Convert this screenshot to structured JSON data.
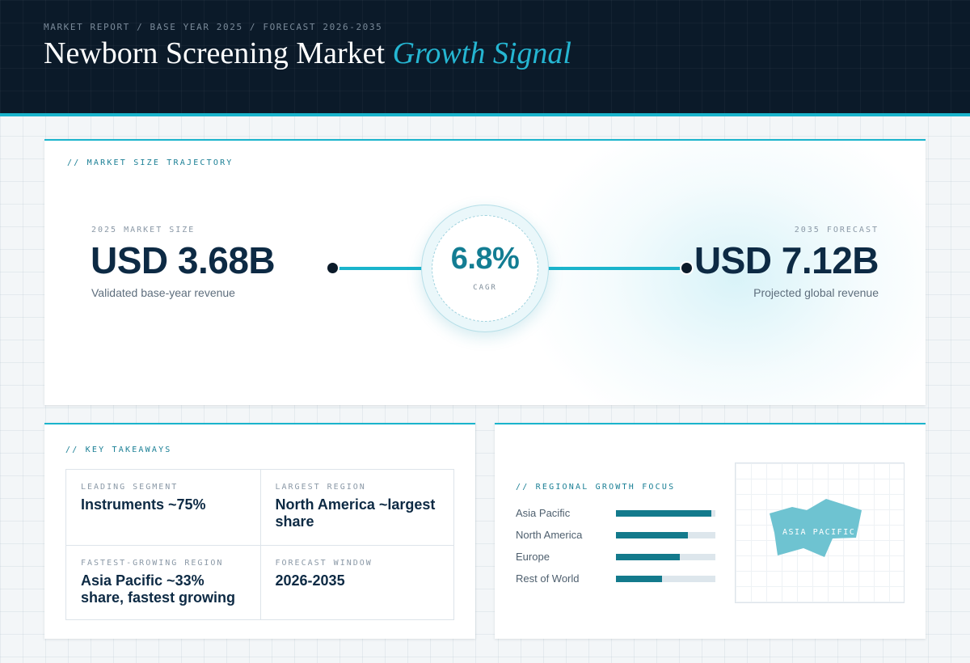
{
  "header": {
    "eyebrow": "MARKET REPORT / BASE YEAR 2025 / FORECAST 2026-2035",
    "title_main": "Newborn Screening Market",
    "title_accent": "Growth Signal"
  },
  "trajectory": {
    "label": "// MARKET SIZE TRAJECTORY",
    "start": {
      "label": "2025 MARKET SIZE",
      "value": "USD 3.68B",
      "caption": "Validated base-year revenue"
    },
    "cagr": {
      "value": "6.8%",
      "label": "CAGR"
    },
    "end": {
      "label": "2035 FORECAST",
      "value": "USD 7.12B",
      "caption": "Projected global revenue"
    }
  },
  "takeaways": {
    "label": "// KEY TAKEAWAYS",
    "items": [
      {
        "key": "LEADING SEGMENT",
        "value": "Instruments ~75%"
      },
      {
        "key": "LARGEST REGION",
        "value": "North America ~largest share"
      },
      {
        "key": "FASTEST-GROWING REGION",
        "value": "Asia Pacific ~33% share, fastest growing"
      },
      {
        "key": "FORECAST WINDOW",
        "value": "2026-2035"
      }
    ]
  },
  "regional": {
    "label": "// REGIONAL GROWTH FOCUS",
    "bars": [
      {
        "name": "Asia Pacific",
        "level": 0.96
      },
      {
        "name": "North America",
        "level": 0.72
      },
      {
        "name": "Europe",
        "level": 0.64
      },
      {
        "name": "Rest of World",
        "level": 0.46
      }
    ],
    "map_label": "ASIA PACIFIC"
  },
  "colors": {
    "accent": "#1ab4cc",
    "navy": "#0b1a29",
    "bar": "#137a8c",
    "map_shape": "#6ec3d1"
  }
}
